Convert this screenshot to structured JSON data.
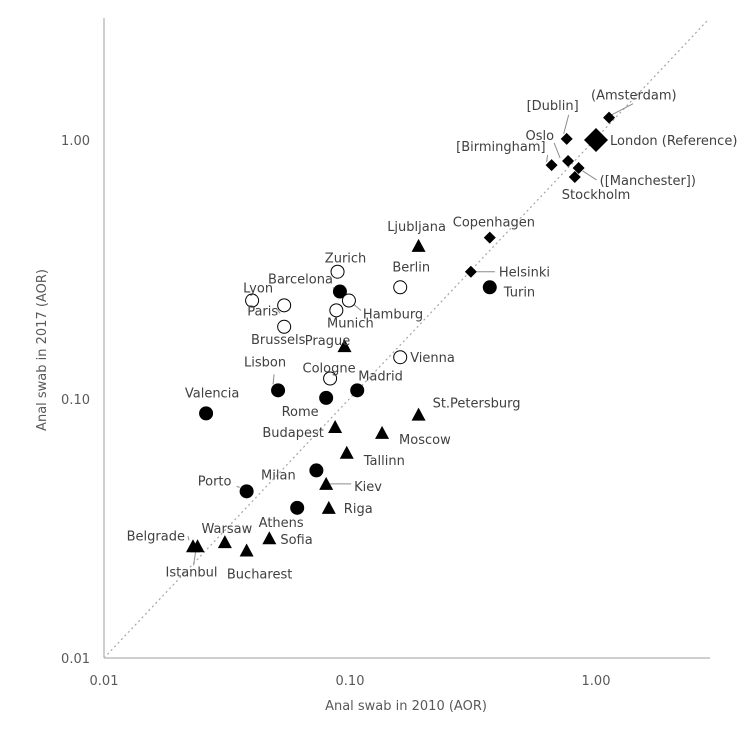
{
  "chart_data": {
    "type": "scatter",
    "title": "",
    "xlabel": "Anal swab in 2010 (AOR)",
    "ylabel": "Anal swab in 2017 (AOR)",
    "x_scale": "log",
    "y_scale": "log",
    "xlim": [
      0.01,
      3
    ],
    "ylim": [
      0.01,
      3
    ],
    "x_ticks": [
      "0.01",
      "0.10",
      "1.00"
    ],
    "y_ticks": [
      "0.01",
      "0.10",
      "1.00"
    ],
    "grid": false,
    "reference_line": "y = x (dotted)",
    "colors": {
      "filled": "#000000",
      "open_stroke": "#000000",
      "open_fill": "#ffffff",
      "axis": "#bfbfbf",
      "diagonal": "#a6a6a6"
    },
    "points": [
      {
        "label": "(Amsterdam)",
        "x": 1.13,
        "y": 1.22,
        "marker": "diamond"
      },
      {
        "label": "[Dublin]",
        "x": 0.76,
        "y": 1.01,
        "marker": "diamond"
      },
      {
        "label": "Oslo",
        "x": 0.77,
        "y": 0.83,
        "marker": "diamond"
      },
      {
        "label": "London (Reference)",
        "x": 1.0,
        "y": 1.0,
        "marker": "diamond-large"
      },
      {
        "label": "[Birmingham]",
        "x": 0.66,
        "y": 0.8,
        "marker": "diamond"
      },
      {
        "label": "([Manchester])",
        "x": 0.85,
        "y": 0.78,
        "marker": "diamond"
      },
      {
        "label": "Stockholm",
        "x": 0.82,
        "y": 0.72,
        "marker": "diamond"
      },
      {
        "label": "Copenhagen",
        "x": 0.37,
        "y": 0.42,
        "marker": "diamond"
      },
      {
        "label": "Helsinki",
        "x": 0.31,
        "y": 0.31,
        "marker": "diamond"
      },
      {
        "label": "Ljubljana",
        "x": 0.19,
        "y": 0.39,
        "marker": "triangle"
      },
      {
        "label": "Turin",
        "x": 0.37,
        "y": 0.27,
        "marker": "circle"
      },
      {
        "label": "Zurich",
        "x": 0.089,
        "y": 0.31,
        "marker": "open-circle"
      },
      {
        "label": "Berlin",
        "x": 0.16,
        "y": 0.27,
        "marker": "open-circle"
      },
      {
        "label": "Barcelona",
        "x": 0.091,
        "y": 0.26,
        "marker": "circle"
      },
      {
        "label": "Hamburg",
        "x": 0.099,
        "y": 0.24,
        "marker": "open-circle"
      },
      {
        "label": "Lyon",
        "x": 0.04,
        "y": 0.24,
        "marker": "open-circle"
      },
      {
        "label": "Paris",
        "x": 0.054,
        "y": 0.23,
        "marker": "open-circle"
      },
      {
        "label": "Munich",
        "x": 0.088,
        "y": 0.22,
        "marker": "open-circle"
      },
      {
        "label": "Brussels",
        "x": 0.054,
        "y": 0.19,
        "marker": "open-circle"
      },
      {
        "label": "Prague",
        "x": 0.095,
        "y": 0.16,
        "marker": "triangle"
      },
      {
        "label": "Vienna",
        "x": 0.16,
        "y": 0.145,
        "marker": "open-circle"
      },
      {
        "label": "Cologne",
        "x": 0.083,
        "y": 0.12,
        "marker": "open-circle"
      },
      {
        "label": "Lisbon",
        "x": 0.051,
        "y": 0.108,
        "marker": "circle"
      },
      {
        "label": "Madrid",
        "x": 0.107,
        "y": 0.108,
        "marker": "circle"
      },
      {
        "label": "Valencia",
        "x": 0.026,
        "y": 0.088,
        "marker": "circle"
      },
      {
        "label": "Rome",
        "x": 0.08,
        "y": 0.101,
        "marker": "circle"
      },
      {
        "label": "St.Petersburg",
        "x": 0.19,
        "y": 0.087,
        "marker": "triangle"
      },
      {
        "label": "Budapest",
        "x": 0.087,
        "y": 0.078,
        "marker": "triangle"
      },
      {
        "label": "Moscow",
        "x": 0.135,
        "y": 0.074,
        "marker": "triangle"
      },
      {
        "label": "Tallinn",
        "x": 0.097,
        "y": 0.062,
        "marker": "triangle"
      },
      {
        "label": "Milan",
        "x": 0.073,
        "y": 0.053,
        "marker": "circle"
      },
      {
        "label": "Kiev",
        "x": 0.08,
        "y": 0.047,
        "marker": "triangle"
      },
      {
        "label": "Porto",
        "x": 0.038,
        "y": 0.044,
        "marker": "circle"
      },
      {
        "label": "Riga",
        "x": 0.082,
        "y": 0.038,
        "marker": "triangle"
      },
      {
        "label": "Athens",
        "x": 0.061,
        "y": 0.038,
        "marker": "circle"
      },
      {
        "label": "Sofia",
        "x": 0.047,
        "y": 0.029,
        "marker": "triangle"
      },
      {
        "label": "Warsaw",
        "x": 0.031,
        "y": 0.028,
        "marker": "triangle"
      },
      {
        "label": "Belgrade",
        "x": 0.023,
        "y": 0.027,
        "marker": "triangle"
      },
      {
        "label": "Istanbul",
        "x": 0.024,
        "y": 0.027,
        "marker": "triangle"
      },
      {
        "label": "Bucharest",
        "x": 0.038,
        "y": 0.026,
        "marker": "triangle"
      }
    ]
  }
}
